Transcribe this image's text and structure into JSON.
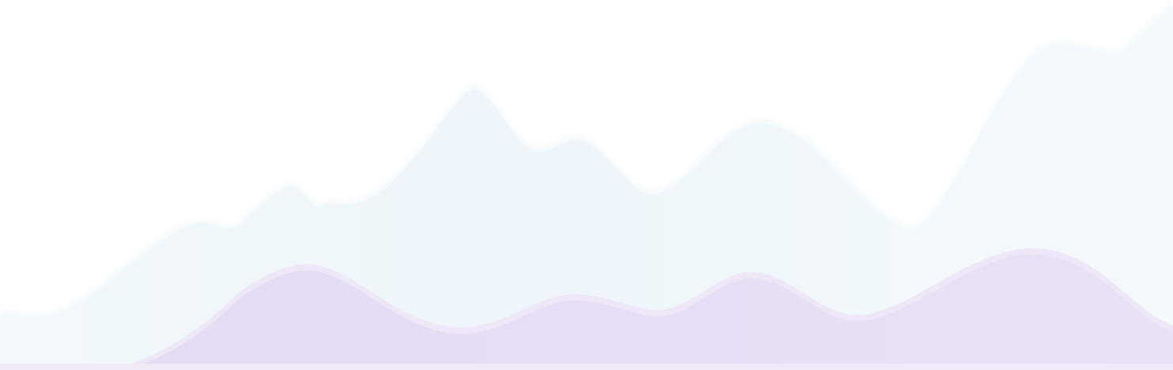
{
  "background": {
    "page_color": "#ffffff",
    "back_wave_color": "#eaf3f9",
    "back_wave_edge_color": "#f3f8fb",
    "front_wave_color": "#e6ddf3",
    "front_wave_edge_color": "#efe8f8",
    "bottom_band_color": "#efe9f8"
  }
}
